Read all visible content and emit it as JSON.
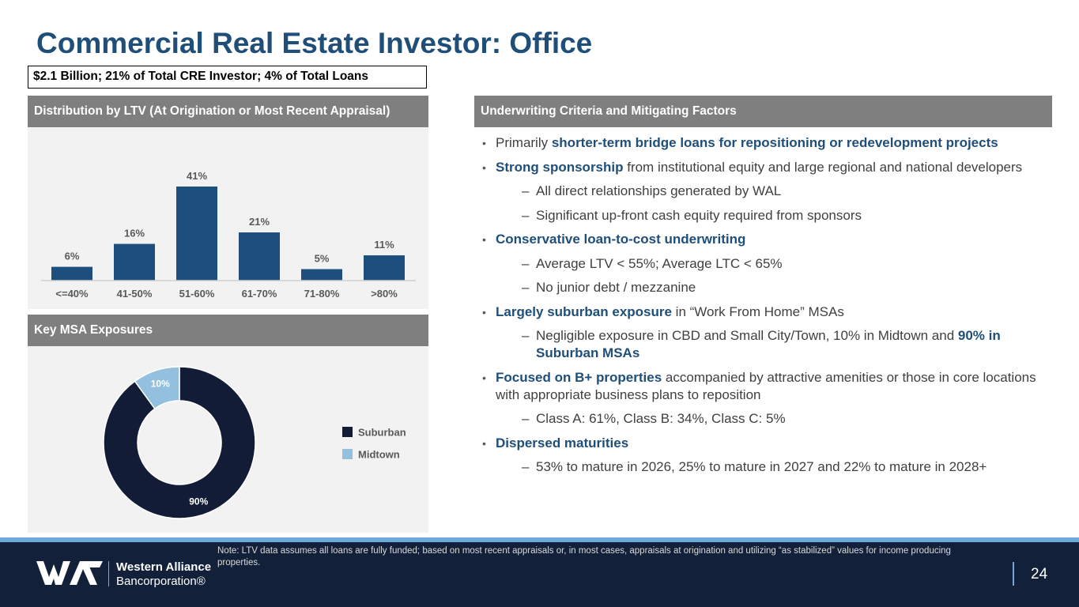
{
  "title": "Commercial Real Estate Investor: Office",
  "summary": "$2.1 Billion; 21% of Total CRE Investor; 4% of Total Loans",
  "ltv_panel": {
    "heading": "Distribution by LTV (At Origination or Most Recent Appraisal)"
  },
  "msa_panel": {
    "heading": "Key MSA Exposures"
  },
  "right_panel": {
    "heading": "Underwriting Criteria and Mitigating Factors"
  },
  "bullets": [
    {
      "pre": "Primarily ",
      "hl": "shorter-term bridge loans for repositioning or redevelopment projects",
      "post": ""
    },
    {
      "pre": "",
      "hl": "Strong sponsorship",
      "post": " from institutional equity and large regional and national developers"
    },
    {
      "dash": "–",
      "text": "All direct relationships generated by WAL"
    },
    {
      "dash": "–",
      "text": "Significant up-front cash equity required from sponsors"
    },
    {
      "pre": "",
      "hl": "Conservative loan-to-cost underwriting",
      "post": ""
    },
    {
      "dash": "–",
      "text": "Average LTV < 55%; Average LTC < 65%"
    },
    {
      "dash": "–",
      "text": "No junior debt / mezzanine"
    },
    {
      "pre": "",
      "hl": "Largely suburban exposure",
      "post": " in “Work From Home” MSAs"
    },
    {
      "dash": "–",
      "pre": "Negligible exposure in CBD and Small City/Town, 10% in Midtown and ",
      "hl": "90% in Suburban MSAs"
    },
    {
      "pre": "",
      "hl": "Focused on B+ properties",
      "post": " accompanied by attractive amenities or those in core locations with appropriate business plans to reposition"
    },
    {
      "dash": "–",
      "text": "Class A: 61%, Class B: 34%, Class C: 5%"
    },
    {
      "pre": "",
      "hl": "Dispersed maturities",
      "post": ""
    },
    {
      "dash": "–",
      "text": "53% to mature in 2026, 25% to mature in 2027 and 22% to mature in 2028+"
    }
  ],
  "chart_data": [
    {
      "type": "bar",
      "title": "Distribution by LTV (At Origination or Most Recent Appraisal)",
      "categories": [
        "<=40%",
        "41-50%",
        "51-60%",
        "61-70%",
        "71-80%",
        ">80%"
      ],
      "values": [
        6,
        16,
        41,
        21,
        5,
        11
      ],
      "labels": [
        "6%",
        "16%",
        "41%",
        "21%",
        "5%",
        "11%"
      ],
      "ylim": [
        0,
        45
      ],
      "color": "#1d4f7c"
    },
    {
      "type": "pie",
      "title": "Key MSA Exposures",
      "categories": [
        "Suburban",
        "Midtown"
      ],
      "values": [
        90,
        10
      ],
      "labels": [
        "90%",
        "10%"
      ],
      "colors": [
        "#121c36",
        "#92c0de"
      ],
      "legend": "right"
    }
  ],
  "footer": {
    "note": "Note: LTV data assumes all loans are fully funded; based on most recent appraisals or, in most cases, appraisals at origination and utilizing “as stabilized” values for income producing properties.",
    "company_line1": "Western Alliance",
    "company_line2": "Bancorporation®",
    "page_number": "24"
  }
}
